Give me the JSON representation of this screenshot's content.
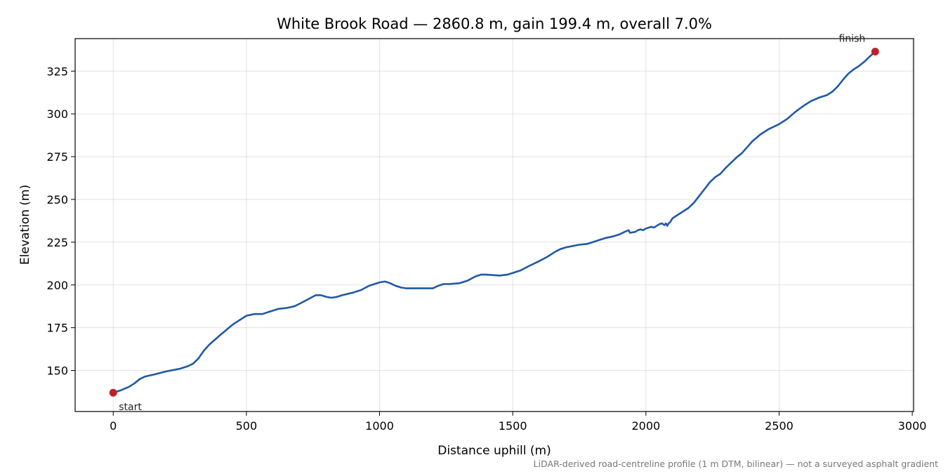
{
  "chart_data": {
    "type": "line",
    "title": "White Brook Road — 2860.8 m, gain 199.4 m, overall 7.0%",
    "xlabel": "Distance uphill (m)",
    "ylabel": "Elevation (m)",
    "xlim": [
      -143,
      3005
    ],
    "ylim": [
      126,
      344
    ],
    "xticks": [
      0,
      500,
      1000,
      1500,
      2000,
      2500,
      3000
    ],
    "yticks": [
      150,
      175,
      200,
      225,
      250,
      275,
      300,
      325
    ],
    "grid": true,
    "line_color": "#1f5aa6",
    "marker_color": "#c0202a",
    "series": [
      {
        "x": [
          0,
          30,
          60,
          80,
          100,
          120,
          150,
          200,
          250,
          280,
          300,
          320,
          340,
          360,
          400,
          450,
          500,
          530,
          560,
          580,
          600,
          620,
          650,
          680,
          700,
          730,
          760,
          780,
          800,
          820,
          840,
          860,
          900,
          930,
          960,
          1000,
          1020,
          1040,
          1060,
          1080,
          1100,
          1150,
          1200,
          1220,
          1240,
          1260,
          1300,
          1330,
          1360,
          1380,
          1400,
          1450,
          1480,
          1500,
          1530,
          1560,
          1600,
          1630,
          1660,
          1680,
          1700,
          1750,
          1780,
          1800,
          1820,
          1850,
          1880,
          1900,
          1920,
          1935,
          1940,
          1960,
          1970,
          1980,
          1990,
          2000,
          2010,
          2020,
          2030,
          2040,
          2050,
          2060,
          2070,
          2075,
          2080,
          2085,
          2090,
          2100,
          2110,
          2120,
          2140,
          2160,
          2180,
          2200,
          2220,
          2240,
          2260,
          2280,
          2300,
          2320,
          2330,
          2340,
          2360,
          2380,
          2400,
          2430,
          2460,
          2500,
          2530,
          2560,
          2590,
          2620,
          2650,
          2680,
          2700,
          2720,
          2740,
          2760,
          2780,
          2800,
          2820,
          2840,
          2860.8
        ],
        "y": [
          137,
          138.5,
          140.5,
          142.5,
          145,
          146.5,
          147.5,
          149.5,
          151,
          152.5,
          154,
          157,
          161.5,
          165,
          170.5,
          177,
          182,
          183,
          183,
          184,
          185,
          186,
          186.5,
          187.5,
          189,
          191.5,
          194,
          194,
          193,
          192.5,
          193,
          194,
          195.5,
          197,
          199.5,
          201.5,
          202,
          201,
          199.5,
          198.5,
          198,
          198,
          198,
          199.5,
          200.5,
          200.5,
          201,
          202.5,
          205,
          206,
          206,
          205.5,
          206,
          207,
          208.5,
          211,
          214,
          216.5,
          219.5,
          221,
          222,
          223.5,
          224,
          225,
          226,
          227.5,
          228.5,
          229.5,
          231,
          232,
          230.5,
          231,
          232,
          232.5,
          232,
          233,
          233.5,
          234,
          233.5,
          234.5,
          235.5,
          236,
          235,
          236,
          234.5,
          236,
          236.5,
          239,
          240,
          241,
          243,
          245,
          248,
          252,
          256,
          260,
          263,
          265,
          268.5,
          271.5,
          273,
          274.5,
          277,
          280.5,
          284,
          288,
          291,
          294,
          297,
          301,
          304.5,
          307.5,
          309.5,
          311,
          313,
          316,
          320,
          323.5,
          326,
          328,
          330.5,
          333.5,
          336.4
        ]
      }
    ],
    "annotations": [
      {
        "text": "start",
        "x": 0,
        "y": 137
      },
      {
        "text": "finish",
        "x": 2860.8,
        "y": 336.4
      }
    ],
    "footnote": "LiDAR-derived road-centreline profile (1 m DTM, bilinear) — not a surveyed asphalt gradient"
  }
}
